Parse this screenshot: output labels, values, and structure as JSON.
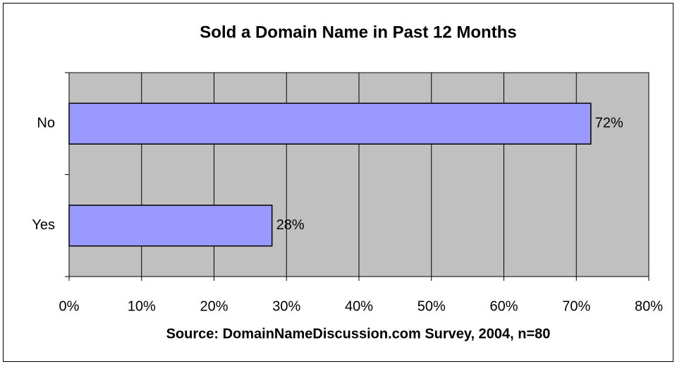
{
  "chart_data": {
    "type": "barh",
    "title": "Sold a Domain Name in Past 12 Months",
    "x_label": "Source: DomainNameDiscussion.com Survey, 2004, n=80",
    "categories": [
      "No",
      "Yes"
    ],
    "values": [
      72,
      28
    ],
    "value_labels": [
      "72%",
      "28%"
    ],
    "color": "#9999ff",
    "plot_background": "#c0c0c0",
    "xlim": [
      0,
      80
    ],
    "xticks": [
      {
        "value": 0,
        "label": "0%"
      },
      {
        "value": 10,
        "label": "10%"
      },
      {
        "value": 20,
        "label": "20%"
      },
      {
        "value": 30,
        "label": "30%"
      },
      {
        "value": 40,
        "label": "40%"
      },
      {
        "value": 50,
        "label": "50%"
      },
      {
        "value": 60,
        "label": "60%"
      },
      {
        "value": 70,
        "label": "70%"
      },
      {
        "value": 80,
        "label": "80%"
      }
    ],
    "grid": true
  }
}
